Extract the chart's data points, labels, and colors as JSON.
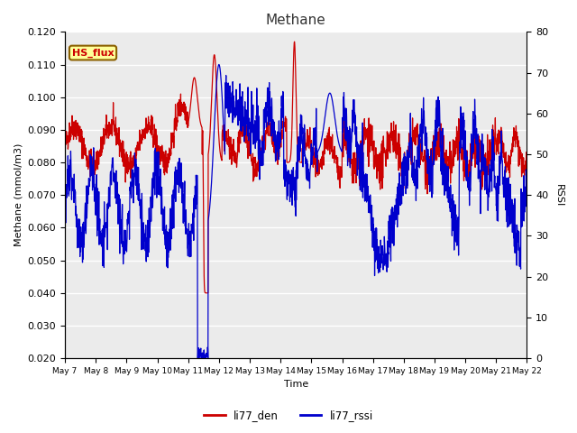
{
  "title": "Methane",
  "xlabel": "Time",
  "ylabel_left": "Methane (mmol/m3)",
  "ylabel_right": "RSSI",
  "ylim_left": [
    0.02,
    0.12
  ],
  "ylim_right": [
    0,
    80
  ],
  "yticks_left": [
    0.02,
    0.03,
    0.04,
    0.05,
    0.06,
    0.07,
    0.08,
    0.09,
    0.1,
    0.11,
    0.12
  ],
  "yticks_right": [
    0,
    10,
    20,
    30,
    40,
    50,
    60,
    70,
    80
  ],
  "fig_bg_color": "#ffffff",
  "plot_bg_color": "#ebebeb",
  "grid_color": "#ffffff",
  "legend_label_red": "li77_den",
  "legend_label_blue": "li77_rssi",
  "annotation_box_text": "HS_flux",
  "annotation_box_facecolor": "#ffff99",
  "annotation_box_edgecolor": "#8b6000",
  "annotation_text_color": "#cc0000",
  "line_color_red": "#cc0000",
  "line_color_blue": "#0000cc",
  "x_tick_labels": [
    "May 7",
    "May 8",
    "May 9",
    "May 10",
    "May 11",
    "May 12",
    "May 13",
    "May 14",
    "May 15",
    "May 16",
    "May 17",
    "May 18",
    "May 19",
    "May 20",
    "May 21",
    "May 22"
  ],
  "n_days": 16,
  "seed": 42
}
